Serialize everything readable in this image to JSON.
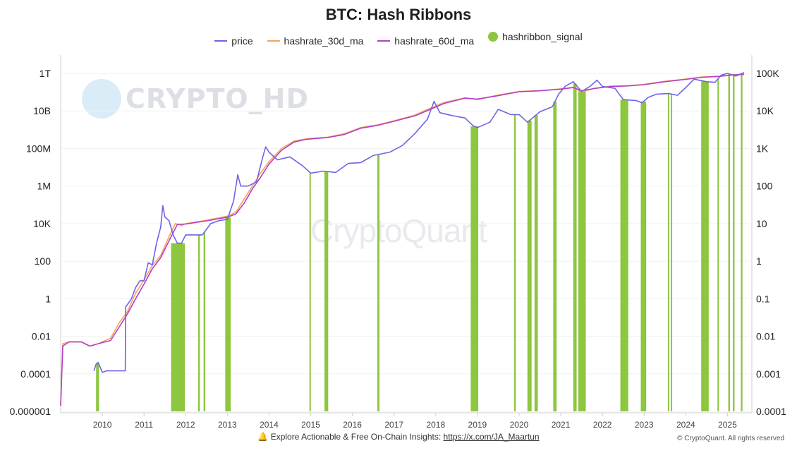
{
  "watermarks": {
    "left": "CRYPTO_HD",
    "center": "CryptoQuant"
  },
  "footer": {
    "bell_icon": "bell-icon",
    "text": "Explore Actionable & Free On-Chain Insights:",
    "link": "https://x.com/JA_Maartun",
    "copyright": "© CryptoQuant. All rights reserved"
  },
  "colors": {
    "price": "#6f63e6",
    "hashrate_30d_ma": "#f2a65a",
    "hashrate_60d_ma": "#b43fc7",
    "signal": "#8dc63f"
  },
  "chart_data": {
    "type": "line",
    "title": "BTC: Hash Ribbons",
    "legend": [
      "price",
      "hashrate_30d_ma",
      "hashrate_60d_ma",
      "hashribbon_signal"
    ],
    "x_ticks": [
      "2010",
      "2011",
      "2012",
      "2013",
      "2014",
      "2015",
      "2016",
      "2017",
      "2018",
      "2019",
      "2020",
      "2021",
      "2022",
      "2023",
      "2024",
      "2025"
    ],
    "y_left_ticks": [
      "1T",
      "10B",
      "100M",
      "1M",
      "10K",
      "100",
      "1",
      "0.01",
      "0.0001",
      "0.000001"
    ],
    "y_right_ticks": [
      "100K",
      "10K",
      "1K",
      "100",
      "10",
      "1",
      "0.1",
      "0.01",
      "0.001",
      "0.0001"
    ],
    "y_left_scale": "log",
    "y_right_scale": "log",
    "y_left_range": [
      1e-06,
      1000000000000.0
    ],
    "y_right_range": [
      0.0001,
      100000
    ],
    "x_range": [
      2009.0,
      2025.45
    ],
    "series": [
      {
        "name": "price",
        "axis": "right",
        "points": [
          [
            2009.8,
            0.0012
          ],
          [
            2009.85,
            0.0018
          ],
          [
            2009.9,
            0.002
          ],
          [
            2010.0,
            0.0011
          ],
          [
            2010.1,
            0.0012
          ],
          [
            2010.3,
            0.0012
          ],
          [
            2010.55,
            0.0012
          ],
          [
            2010.56,
            0.06
          ],
          [
            2010.7,
            0.1
          ],
          [
            2010.8,
            0.2
          ],
          [
            2010.9,
            0.3
          ],
          [
            2011.0,
            0.3
          ],
          [
            2011.1,
            0.9
          ],
          [
            2011.2,
            0.8
          ],
          [
            2011.3,
            3
          ],
          [
            2011.4,
            8
          ],
          [
            2011.45,
            30
          ],
          [
            2011.5,
            15
          ],
          [
            2011.6,
            12
          ],
          [
            2011.7,
            5
          ],
          [
            2011.8,
            3
          ],
          [
            2011.9,
            3
          ],
          [
            2012.0,
            5
          ],
          [
            2012.2,
            5
          ],
          [
            2012.4,
            5
          ],
          [
            2012.6,
            10
          ],
          [
            2012.8,
            12
          ],
          [
            2013.0,
            13
          ],
          [
            2013.15,
            40
          ],
          [
            2013.25,
            200
          ],
          [
            2013.32,
            100
          ],
          [
            2013.5,
            100
          ],
          [
            2013.7,
            130
          ],
          [
            2013.85,
            600
          ],
          [
            2013.92,
            1100
          ],
          [
            2014.0,
            800
          ],
          [
            2014.2,
            500
          ],
          [
            2014.5,
            600
          ],
          [
            2014.8,
            350
          ],
          [
            2015.0,
            220
          ],
          [
            2015.3,
            250
          ],
          [
            2015.6,
            230
          ],
          [
            2015.9,
            400
          ],
          [
            2016.2,
            420
          ],
          [
            2016.5,
            650
          ],
          [
            2016.9,
            800
          ],
          [
            2017.2,
            1200
          ],
          [
            2017.5,
            2500
          ],
          [
            2017.8,
            6000
          ],
          [
            2017.96,
            18000
          ],
          [
            2018.1,
            9000
          ],
          [
            2018.4,
            7500
          ],
          [
            2018.7,
            6500
          ],
          [
            2018.9,
            4000
          ],
          [
            2019.0,
            3600
          ],
          [
            2019.3,
            5000
          ],
          [
            2019.5,
            11000
          ],
          [
            2019.8,
            8000
          ],
          [
            2020.0,
            8000
          ],
          [
            2020.2,
            5000
          ],
          [
            2020.5,
            9500
          ],
          [
            2020.8,
            13000
          ],
          [
            2020.95,
            28000
          ],
          [
            2021.1,
            45000
          ],
          [
            2021.3,
            60000
          ],
          [
            2021.5,
            33000
          ],
          [
            2021.7,
            45000
          ],
          [
            2021.87,
            66000
          ],
          [
            2022.0,
            45000
          ],
          [
            2022.3,
            40000
          ],
          [
            2022.5,
            20000
          ],
          [
            2022.8,
            19000
          ],
          [
            2022.95,
            16500
          ],
          [
            2023.1,
            23000
          ],
          [
            2023.3,
            28000
          ],
          [
            2023.6,
            29000
          ],
          [
            2023.8,
            26000
          ],
          [
            2024.0,
            42000
          ],
          [
            2024.2,
            70000
          ],
          [
            2024.5,
            60000
          ],
          [
            2024.7,
            58000
          ],
          [
            2024.85,
            90000
          ],
          [
            2025.0,
            100000
          ],
          [
            2025.2,
            85000
          ],
          [
            2025.4,
            105000
          ]
        ]
      },
      {
        "name": "hashrate_30d_ma",
        "axis": "left",
        "points": [
          [
            2009.0,
            2e-06
          ],
          [
            2009.05,
            0.004
          ],
          [
            2009.2,
            0.005
          ],
          [
            2009.5,
            0.005
          ],
          [
            2009.7,
            0.003
          ],
          [
            2009.9,
            0.004
          ],
          [
            2010.2,
            0.008
          ],
          [
            2010.4,
            0.05
          ],
          [
            2010.6,
            0.2
          ],
          [
            2010.8,
            2
          ],
          [
            2011.0,
            10
          ],
          [
            2011.2,
            60
          ],
          [
            2011.4,
            200
          ],
          [
            2011.6,
            2000
          ],
          [
            2011.75,
            10000
          ],
          [
            2011.9,
            8000
          ],
          [
            2012.0,
            10000
          ],
          [
            2012.5,
            15000
          ],
          [
            2013.0,
            25000
          ],
          [
            2013.2,
            40000
          ],
          [
            2013.4,
            200000
          ],
          [
            2013.6,
            1000000
          ],
          [
            2013.8,
            5000000.0
          ],
          [
            2014.0,
            20000000.0
          ],
          [
            2014.3,
            100000000.0
          ],
          [
            2014.6,
            250000000.0
          ],
          [
            2014.9,
            330000000.0
          ],
          [
            2015.4,
            400000000.0
          ],
          [
            2015.8,
            600000000.0
          ],
          [
            2016.2,
            1300000000.0
          ],
          [
            2016.6,
            1800000000.0
          ],
          [
            2017.0,
            3000000000.0
          ],
          [
            2017.5,
            6000000000.0
          ],
          [
            2017.9,
            15000000000.0
          ],
          [
            2018.2,
            28000000000.0
          ],
          [
            2018.7,
            50000000000.0
          ],
          [
            2019.0,
            40000000000.0
          ],
          [
            2019.5,
            70000000000.0
          ],
          [
            2020.0,
            110000000000.0
          ],
          [
            2020.5,
            120000000000.0
          ],
          [
            2021.0,
            150000000000.0
          ],
          [
            2021.3,
            180000000000.0
          ],
          [
            2021.5,
            100000000000.0
          ],
          [
            2021.8,
            160000000000.0
          ],
          [
            2022.2,
            210000000000.0
          ],
          [
            2022.6,
            220000000000.0
          ],
          [
            2023.0,
            260000000000.0
          ],
          [
            2023.5,
            380000000000.0
          ],
          [
            2024.0,
            500000000000.0
          ],
          [
            2024.4,
            650000000000.0
          ],
          [
            2024.8,
            700000000000.0
          ],
          [
            2025.1,
            850000000000.0
          ],
          [
            2025.4,
            900000000000.0
          ]
        ]
      },
      {
        "name": "hashrate_60d_ma",
        "axis": "left",
        "points": [
          [
            2009.0,
            2e-06
          ],
          [
            2009.05,
            0.003
          ],
          [
            2009.2,
            0.005
          ],
          [
            2009.5,
            0.005
          ],
          [
            2009.7,
            0.003
          ],
          [
            2009.9,
            0.004
          ],
          [
            2010.2,
            0.006
          ],
          [
            2010.4,
            0.03
          ],
          [
            2010.6,
            0.15
          ],
          [
            2010.8,
            1
          ],
          [
            2011.0,
            6
          ],
          [
            2011.2,
            40
          ],
          [
            2011.4,
            150
          ],
          [
            2011.6,
            1200
          ],
          [
            2011.8,
            9000
          ],
          [
            2012.0,
            9500
          ],
          [
            2012.5,
            14000
          ],
          [
            2013.0,
            22000
          ],
          [
            2013.2,
            32000
          ],
          [
            2013.4,
            120000
          ],
          [
            2013.6,
            700000
          ],
          [
            2013.8,
            3000000.0
          ],
          [
            2014.0,
            15000000.0
          ],
          [
            2014.3,
            80000000.0
          ],
          [
            2014.6,
            220000000.0
          ],
          [
            2014.9,
            310000000.0
          ],
          [
            2015.4,
            380000000.0
          ],
          [
            2015.8,
            550000000.0
          ],
          [
            2016.2,
            1200000000.0
          ],
          [
            2016.6,
            1700000000.0
          ],
          [
            2017.0,
            2800000000.0
          ],
          [
            2017.5,
            5500000000.0
          ],
          [
            2017.9,
            13000000000.0
          ],
          [
            2018.2,
            25000000000.0
          ],
          [
            2018.7,
            48000000000.0
          ],
          [
            2019.0,
            43000000000.0
          ],
          [
            2019.5,
            65000000000.0
          ],
          [
            2020.0,
            105000000000.0
          ],
          [
            2020.5,
            118000000000.0
          ],
          [
            2021.0,
            145000000000.0
          ],
          [
            2021.3,
            175000000000.0
          ],
          [
            2021.5,
            120000000000.0
          ],
          [
            2021.8,
            155000000000.0
          ],
          [
            2022.2,
            200000000000.0
          ],
          [
            2022.6,
            215000000000.0
          ],
          [
            2023.0,
            250000000000.0
          ],
          [
            2023.5,
            360000000000.0
          ],
          [
            2024.0,
            480000000000.0
          ],
          [
            2024.4,
            620000000000.0
          ],
          [
            2024.8,
            690000000000.0
          ],
          [
            2025.1,
            820000000000.0
          ],
          [
            2025.4,
            880000000000.0
          ]
        ]
      }
    ],
    "signal_periods": [
      [
        2009.85,
        2009.92
      ],
      [
        2011.65,
        2011.98
      ],
      [
        2012.3,
        2012.34
      ],
      [
        2012.43,
        2012.47
      ],
      [
        2012.95,
        2013.08
      ],
      [
        2014.97,
        2015.0
      ],
      [
        2015.33,
        2015.42
      ],
      [
        2016.6,
        2016.65
      ],
      [
        2018.84,
        2019.02
      ],
      [
        2019.88,
        2019.92
      ],
      [
        2020.2,
        2020.3
      ],
      [
        2020.37,
        2020.45
      ],
      [
        2020.82,
        2020.9
      ],
      [
        2021.3,
        2021.38
      ],
      [
        2021.42,
        2021.6
      ],
      [
        2022.43,
        2022.62
      ],
      [
        2022.92,
        2023.05
      ],
      [
        2023.57,
        2023.6
      ],
      [
        2023.64,
        2023.67
      ],
      [
        2024.37,
        2024.55
      ],
      [
        2024.76,
        2024.79
      ],
      [
        2025.02,
        2025.06
      ],
      [
        2025.13,
        2025.17
      ],
      [
        2025.32,
        2025.36
      ]
    ]
  }
}
